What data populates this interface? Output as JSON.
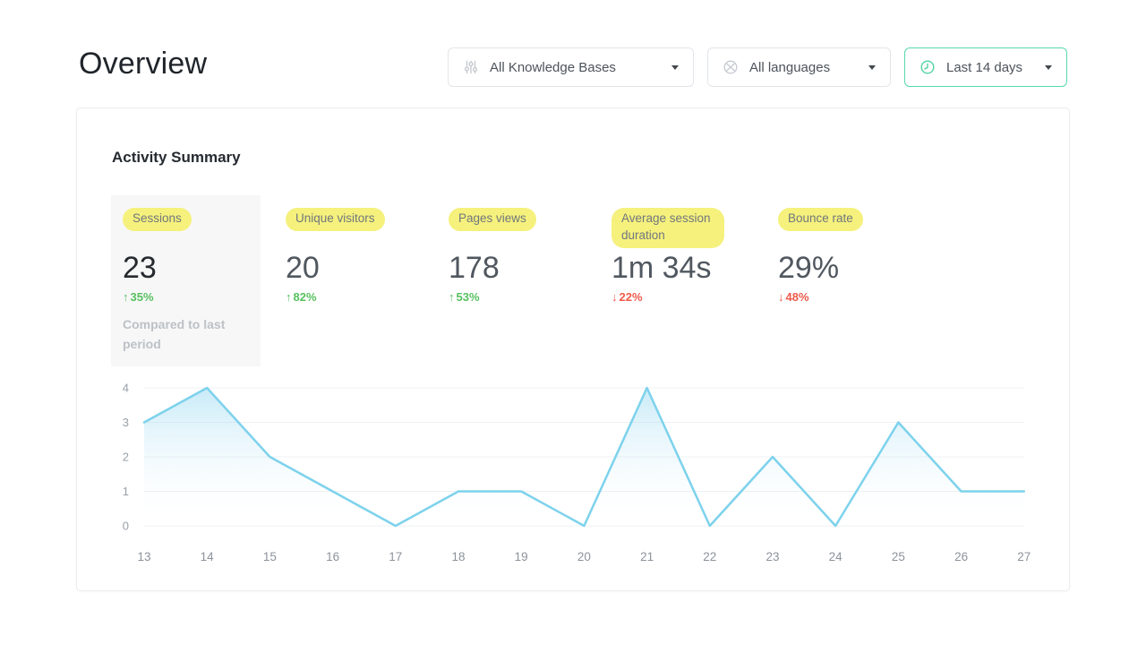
{
  "page": {
    "title": "Overview"
  },
  "filters": {
    "knowledge_bases": {
      "label": "All Knowledge Bases"
    },
    "languages": {
      "label": "All languages"
    },
    "date_range": {
      "label": "Last 14 days"
    }
  },
  "card": {
    "title": "Activity Summary",
    "metrics": [
      {
        "label": "Sessions",
        "value": "23",
        "change": "35%",
        "direction": "up",
        "selected": true,
        "note": "Compared to last period"
      },
      {
        "label": "Unique visitors",
        "value": "20",
        "change": "82%",
        "direction": "up",
        "selected": false
      },
      {
        "label": "Pages views",
        "value": "178",
        "change": "53%",
        "direction": "up",
        "selected": false
      },
      {
        "label": "Average session duration",
        "value": "1m 34s",
        "change": "22%",
        "direction": "down",
        "selected": false
      },
      {
        "label": "Bounce rate",
        "value": "29%",
        "change": "48%",
        "direction": "down",
        "selected": false
      }
    ]
  },
  "glyphs": {
    "up_arrow": "↑",
    "down_arrow": "↓"
  },
  "colors": {
    "up": "#57c15f",
    "down": "#ef5a4b",
    "highlight_pill": "#f5f17c",
    "accent_mint": "#5ad9ab",
    "selected_tile_bg": "#f7f7f8"
  },
  "chart_data": {
    "type": "area",
    "title": "",
    "x": [
      13,
      14,
      15,
      16,
      17,
      18,
      19,
      20,
      21,
      22,
      23,
      24,
      25,
      26,
      27
    ],
    "values": [
      3,
      4,
      2,
      1,
      0,
      1,
      1,
      0,
      4,
      0,
      2,
      0,
      3,
      1,
      1
    ],
    "xlabel": "",
    "ylabel": "",
    "ylim": [
      0,
      4
    ],
    "yticks": [
      0,
      1,
      2,
      3,
      4
    ],
    "grid": "horizontal",
    "legend": false,
    "line_color": "#7dd2ec",
    "fill_top": "rgba(146,214,240,0.5)",
    "fill_bottom": "rgba(255,255,255,0)",
    "grid_color": "#eef0f3",
    "tick_color": "#99a0a8"
  }
}
